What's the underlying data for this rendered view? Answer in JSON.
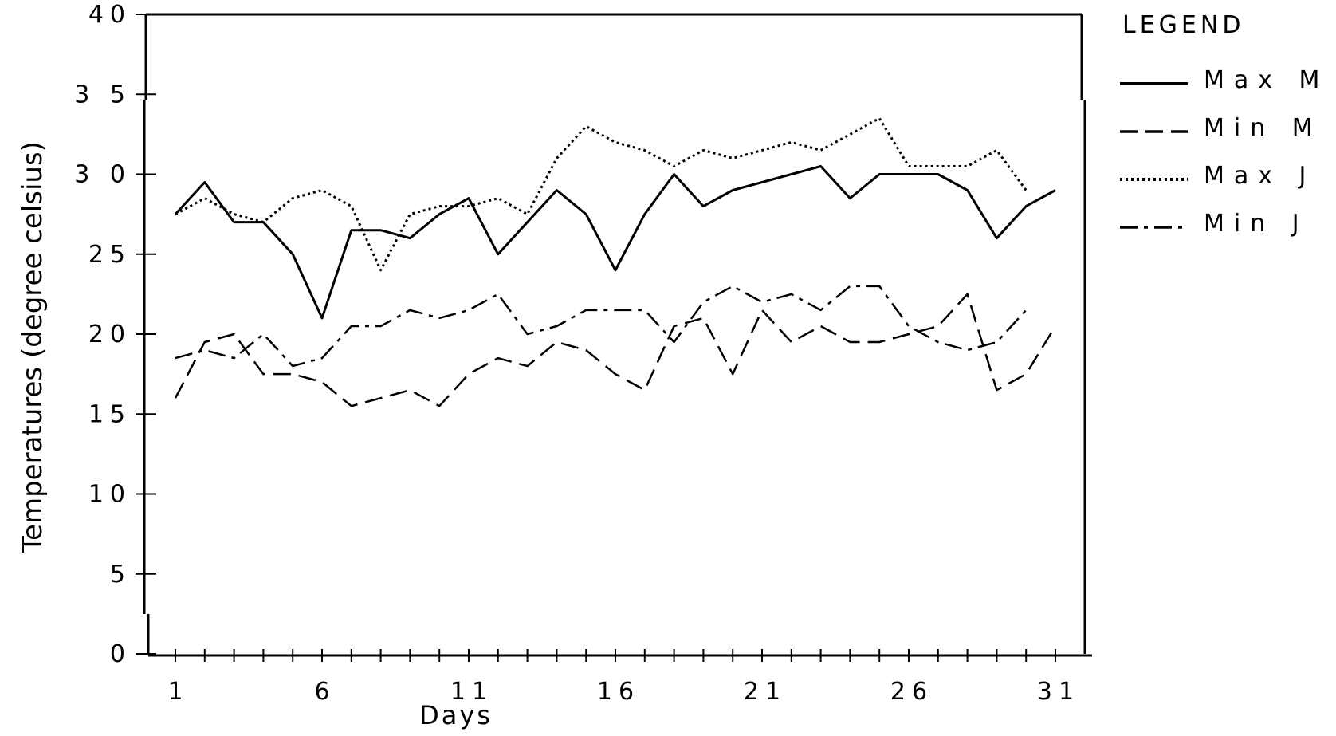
{
  "chart_data": {
    "type": "line",
    "title": "",
    "xlabel": "Days",
    "ylabel": "Temperatures (degree celsius)",
    "xlim": [
      0,
      32
    ],
    "ylim": [
      0,
      40
    ],
    "x_ticks": [
      "1",
      "6",
      "11",
      "16",
      "21",
      "26",
      "31"
    ],
    "y_ticks": [
      "0",
      "5",
      "10",
      "15",
      "20",
      "25",
      "3 0",
      "3 5",
      "40"
    ],
    "legend": {
      "title": "LEGEND",
      "position": "right"
    },
    "x": [
      1,
      2,
      3,
      4,
      5,
      6,
      7,
      8,
      9,
      10,
      11,
      12,
      13,
      14,
      15,
      16,
      17,
      18,
      19,
      20,
      21,
      22,
      23,
      24,
      25,
      26,
      27,
      28,
      29,
      30,
      31
    ],
    "series": [
      {
        "name": "Max M",
        "style": "solid",
        "values": [
          27.5,
          29.5,
          27,
          27,
          25,
          21,
          26.5,
          26.5,
          26,
          27.5,
          28.5,
          25,
          27,
          29,
          27.5,
          24,
          27.5,
          30,
          28,
          29,
          29.5,
          30,
          30.5,
          28.5,
          30,
          30,
          30,
          29,
          26,
          28,
          29
        ]
      },
      {
        "name": "Min M",
        "style": "dashed",
        "values": [
          16,
          19.5,
          20,
          17.5,
          17.5,
          17,
          15.5,
          16,
          16.5,
          15.5,
          17.5,
          18.5,
          18,
          19.5,
          19,
          17.5,
          16.5,
          20.5,
          21,
          17.5,
          21.5,
          19.5,
          20.5,
          19.5,
          19.5,
          20,
          20.5,
          22.5,
          16.5,
          17.5,
          20.5
        ]
      },
      {
        "name": "Max J",
        "style": "dotted",
        "values": [
          27.5,
          28.5,
          27.5,
          27,
          28.5,
          29,
          28,
          24,
          27.5,
          28,
          28,
          28.5,
          27.5,
          31,
          33,
          32,
          31.5,
          30.5,
          31.5,
          31,
          31.5,
          32,
          31.5,
          32.5,
          33.5,
          30.5,
          30.5,
          30.5,
          31.5,
          29,
          null
        ]
      },
      {
        "name": "Min J",
        "style": "dashdot",
        "values": [
          18.5,
          19,
          18.5,
          20,
          18,
          18.5,
          20.5,
          20.5,
          21.5,
          21,
          21.5,
          22.5,
          20,
          20.5,
          21.5,
          21.5,
          21.5,
          19.5,
          22,
          23,
          22,
          22.5,
          21.5,
          23,
          23,
          20.5,
          19.5,
          19,
          19.5,
          21.5,
          null
        ]
      }
    ]
  }
}
